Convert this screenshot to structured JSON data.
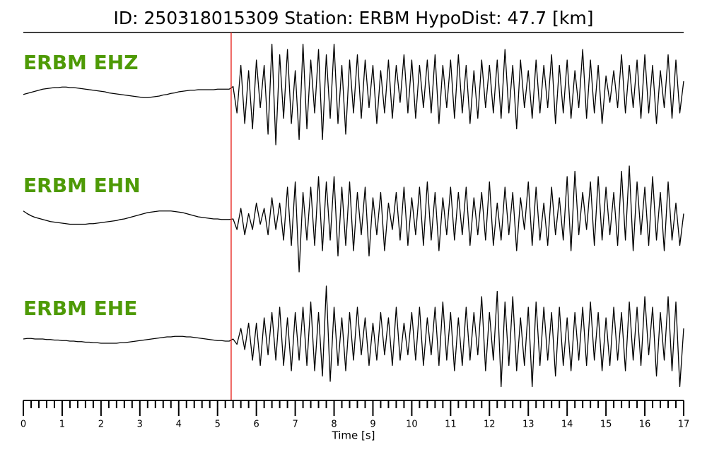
{
  "chart_data": {
    "type": "seismogram",
    "title": "ID: 250318015309   Station: ERBM   HypoDist:    47.7 [km]",
    "xlabel": "Time [s]",
    "xlim": [
      0,
      17
    ],
    "xticks": [
      0,
      1,
      2,
      3,
      4,
      5,
      6,
      7,
      8,
      9,
      10,
      11,
      12,
      13,
      14,
      15,
      16,
      17
    ],
    "minor_xticks": [
      0.2,
      0.4,
      0.6,
      0.8,
      1.2,
      1.4,
      1.6,
      1.8,
      2.2,
      2.4,
      2.6,
      2.8,
      3.2,
      3.4,
      3.6,
      3.8,
      4.2,
      4.4,
      4.6,
      4.8,
      5.2,
      5.4,
      5.6,
      5.8,
      6.2,
      6.4,
      6.6,
      6.8,
      7.2,
      7.4,
      7.6,
      7.8,
      8.2,
      8.4,
      8.6,
      8.8,
      9.2,
      9.4,
      9.6,
      9.8,
      10.2,
      10.4,
      10.6,
      10.8,
      11.2,
      11.4,
      11.6,
      11.8,
      12.2,
      12.4,
      12.6,
      12.8,
      13.2,
      13.4,
      13.6,
      13.8,
      14.2,
      14.4,
      14.6,
      14.8,
      15.2,
      15.4,
      15.6,
      15.8,
      16.2,
      16.4,
      16.6,
      16.8
    ],
    "pick_time": 5.35,
    "pick_color": "#e8302a",
    "label_color": "#4e9a06",
    "ylim": [
      -1,
      1
    ],
    "x": [
      0,
      0.1,
      0.2,
      0.3,
      0.4,
      0.5,
      0.6,
      0.7,
      0.8,
      0.9,
      1,
      1.1,
      1.2,
      1.3,
      1.4,
      1.5,
      1.6,
      1.7,
      1.8,
      1.9,
      2,
      2.1,
      2.2,
      2.3,
      2.4,
      2.5,
      2.6,
      2.7,
      2.8,
      2.9,
      3,
      3.1,
      3.2,
      3.3,
      3.4,
      3.5,
      3.6,
      3.7,
      3.8,
      3.9,
      4,
      4.1,
      4.2,
      4.3,
      4.4,
      4.5,
      4.6,
      4.7,
      4.8,
      4.9,
      5,
      5.1,
      5.2,
      5.3,
      5.4,
      5.5,
      5.6,
      5.7,
      5.8,
      5.9,
      6,
      6.1,
      6.2,
      6.3,
      6.4,
      6.5,
      6.6,
      6.7,
      6.8,
      6.9,
      7,
      7.1,
      7.2,
      7.3,
      7.4,
      7.5,
      7.6,
      7.7,
      7.8,
      7.9,
      8,
      8.1,
      8.2,
      8.3,
      8.4,
      8.5,
      8.6,
      8.7,
      8.8,
      8.9,
      9,
      9.1,
      9.2,
      9.3,
      9.4,
      9.5,
      9.6,
      9.7,
      9.8,
      9.9,
      10,
      10.1,
      10.2,
      10.3,
      10.4,
      10.5,
      10.6,
      10.7,
      10.8,
      10.9,
      11,
      11.1,
      11.2,
      11.3,
      11.4,
      11.5,
      11.6,
      11.7,
      11.8,
      11.9,
      12,
      12.1,
      12.2,
      12.3,
      12.4,
      12.5,
      12.6,
      12.7,
      12.8,
      12.9,
      13,
      13.1,
      13.2,
      13.3,
      13.4,
      13.5,
      13.6,
      13.7,
      13.8,
      13.9,
      14,
      14.1,
      14.2,
      14.3,
      14.4,
      14.5,
      14.6,
      14.7,
      14.8,
      14.9,
      15,
      15.1,
      15.2,
      15.3,
      15.4,
      15.5,
      15.6,
      15.7,
      15.8,
      15.9,
      16,
      16.1,
      16.2,
      16.3,
      16.4,
      16.5,
      16.6,
      16.7,
      16.8,
      16.9,
      17
    ],
    "series": [
      {
        "name": "ERBM EHZ",
        "color": "#000000",
        "values": [
          -0.05,
          -0.03,
          -0.01,
          0.01,
          0.03,
          0.05,
          0.06,
          0.07,
          0.08,
          0.08,
          0.09,
          0.09,
          0.08,
          0.08,
          0.07,
          0.06,
          0.05,
          0.04,
          0.03,
          0.02,
          0.01,
          0,
          -0.02,
          -0.03,
          -0.04,
          -0.05,
          -0.06,
          -0.07,
          -0.08,
          -0.09,
          -0.1,
          -0.11,
          -0.11,
          -0.1,
          -0.09,
          -0.08,
          -0.06,
          -0.05,
          -0.03,
          -0.02,
          0,
          0.01,
          0.02,
          0.03,
          0.03,
          0.04,
          0.04,
          0.04,
          0.04,
          0.04,
          0.05,
          0.05,
          0.05,
          0.05,
          0.1,
          -0.4,
          0.5,
          -0.6,
          0.4,
          -0.7,
          0.6,
          -0.3,
          0.5,
          -0.8,
          0.9,
          -1.0,
          0.7,
          -0.5,
          0.8,
          -0.6,
          0.4,
          -0.9,
          0.9,
          -0.7,
          0.6,
          -0.4,
          0.8,
          -0.9,
          0.7,
          -0.5,
          0.9,
          -0.6,
          0.5,
          -0.8,
          0.6,
          -0.4,
          0.7,
          -0.5,
          0.6,
          -0.3,
          0.5,
          -0.6,
          0.4,
          -0.4,
          0.6,
          -0.5,
          0.5,
          -0.2,
          0.7,
          -0.4,
          0.6,
          -0.5,
          0.5,
          -0.3,
          0.6,
          -0.4,
          0.7,
          -0.6,
          0.5,
          -0.3,
          0.6,
          -0.5,
          0.7,
          -0.4,
          0.5,
          -0.6,
          0.4,
          -0.5,
          0.6,
          -0.3,
          0.5,
          -0.4,
          0.6,
          -0.5,
          0.8,
          -0.4,
          0.5,
          -0.7,
          0.6,
          -0.3,
          0.4,
          -0.5,
          0.6,
          -0.4,
          0.5,
          -0.3,
          0.7,
          -0.6,
          0.5,
          -0.4,
          0.6,
          -0.5,
          0.4,
          -0.3,
          0.8,
          -0.5,
          0.6,
          -0.4,
          0.5,
          -0.6,
          0.3,
          -0.2,
          0.4,
          -0.3,
          0.7,
          -0.4,
          0.5,
          -0.3,
          0.6,
          -0.5,
          0.7,
          -0.4,
          0.5,
          -0.6,
          0.4,
          -0.3,
          0.7,
          -0.5,
          0.6,
          -0.4,
          0.2
        ]
      },
      {
        "name": "ERBM EHN",
        "color": "#000000",
        "values": [
          0.15,
          0.1,
          0.06,
          0.03,
          0.01,
          -0.01,
          -0.03,
          -0.05,
          -0.06,
          -0.07,
          -0.08,
          -0.09,
          -0.1,
          -0.1,
          -0.1,
          -0.1,
          -0.1,
          -0.09,
          -0.09,
          -0.08,
          -0.07,
          -0.06,
          -0.05,
          -0.04,
          -0.03,
          -0.01,
          0,
          0.02,
          0.04,
          0.06,
          0.08,
          0.1,
          0.12,
          0.13,
          0.14,
          0.15,
          0.15,
          0.15,
          0.15,
          0.14,
          0.13,
          0.12,
          0.1,
          0.08,
          0.06,
          0.04,
          0.03,
          0.02,
          0.01,
          0,
          0,
          -0.01,
          -0.01,
          -0.01,
          0,
          -0.2,
          0.2,
          -0.3,
          0.1,
          -0.2,
          0.3,
          -0.1,
          0.2,
          -0.3,
          0.4,
          -0.2,
          0.3,
          -0.4,
          0.6,
          -0.5,
          0.7,
          -1.0,
          0.5,
          -0.4,
          0.6,
          -0.5,
          0.8,
          -0.6,
          0.7,
          -0.4,
          0.8,
          -0.7,
          0.6,
          -0.5,
          0.7,
          -0.6,
          0.5,
          -0.3,
          0.6,
          -0.7,
          0.4,
          -0.3,
          0.5,
          -0.6,
          0.3,
          -0.2,
          0.5,
          -0.4,
          0.6,
          -0.5,
          0.4,
          -0.3,
          0.6,
          -0.5,
          0.7,
          -0.4,
          0.5,
          -0.6,
          0.4,
          -0.3,
          0.6,
          -0.4,
          0.5,
          -0.3,
          0.6,
          -0.5,
          0.4,
          -0.3,
          0.5,
          -0.4,
          0.7,
          -0.5,
          0.3,
          -0.4,
          0.6,
          -0.3,
          0.5,
          -0.6,
          0.4,
          -0.2,
          0.7,
          -0.5,
          0.6,
          -0.4,
          0.3,
          -0.5,
          0.6,
          -0.3,
          0.4,
          -0.4,
          0.8,
          -0.6,
          0.9,
          -0.3,
          0.5,
          -0.2,
          0.7,
          -0.5,
          0.8,
          -0.4,
          0.6,
          -0.3,
          0.5,
          -0.5,
          0.9,
          -0.4,
          1.0,
          -0.6,
          0.7,
          -0.3,
          0.6,
          -0.5,
          0.8,
          -0.4,
          0.5,
          -0.6,
          0.7,
          -0.4,
          0.3,
          -0.5,
          0.1
        ]
      },
      {
        "name": "ERBM EHE",
        "color": "#000000",
        "values": [
          0,
          0.01,
          0.01,
          0,
          0,
          0,
          -0.01,
          -0.01,
          -0.02,
          -0.02,
          -0.03,
          -0.03,
          -0.04,
          -0.04,
          -0.05,
          -0.05,
          -0.06,
          -0.06,
          -0.07,
          -0.07,
          -0.08,
          -0.08,
          -0.08,
          -0.08,
          -0.08,
          -0.07,
          -0.07,
          -0.06,
          -0.05,
          -0.04,
          -0.03,
          -0.02,
          -0.01,
          0,
          0.01,
          0.02,
          0.03,
          0.04,
          0.04,
          0.05,
          0.05,
          0.05,
          0.04,
          0.04,
          0.03,
          0.02,
          0.01,
          0,
          -0.01,
          -0.02,
          -0.03,
          -0.03,
          -0.04,
          -0.04,
          0,
          -0.1,
          0.2,
          -0.2,
          0.3,
          -0.4,
          0.3,
          -0.5,
          0.4,
          -0.3,
          0.5,
          -0.4,
          0.6,
          -0.5,
          0.4,
          -0.6,
          0.5,
          -0.4,
          0.6,
          -0.5,
          0.7,
          -0.6,
          0.5,
          -0.7,
          1.0,
          -0.8,
          0.6,
          -0.5,
          0.4,
          -0.6,
          0.5,
          -0.4,
          0.6,
          -0.3,
          0.4,
          -0.5,
          0.3,
          -0.4,
          0.5,
          -0.3,
          0.4,
          -0.5,
          0.6,
          -0.4,
          0.3,
          -0.3,
          0.5,
          -0.4,
          0.6,
          -0.5,
          0.4,
          -0.3,
          0.6,
          -0.5,
          0.7,
          -0.4,
          0.5,
          -0.6,
          0.4,
          -0.5,
          0.6,
          -0.4,
          0.5,
          -0.3,
          0.8,
          -0.6,
          0.5,
          -0.4,
          0.9,
          -0.9,
          0.7,
          -0.5,
          0.8,
          -0.6,
          0.4,
          -0.5,
          0.6,
          -0.9,
          0.7,
          -0.5,
          0.6,
          -0.4,
          0.5,
          -0.7,
          0.6,
          -0.5,
          0.4,
          -0.6,
          0.5,
          -0.4,
          0.6,
          -0.5,
          0.7,
          -0.4,
          0.5,
          -0.6,
          0.4,
          -0.5,
          0.6,
          -0.4,
          0.5,
          -0.6,
          0.7,
          -0.4,
          0.6,
          -0.5,
          0.8,
          -0.3,
          0.6,
          -0.7,
          0.5,
          -0.4,
          0.8,
          -0.6,
          0.7,
          -0.9,
          0.2
        ]
      }
    ]
  }
}
